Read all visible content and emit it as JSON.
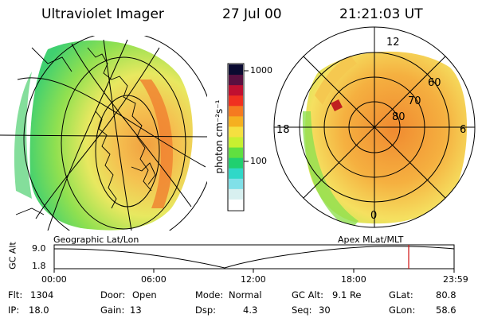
{
  "header": {
    "instrument": "Ultraviolet Imager",
    "date": "27 Jul 00",
    "time": "21:21:03 UT"
  },
  "colorbar": {
    "unit_label": "photon cm⁻²s⁻¹",
    "ticks": [
      "1000",
      "100"
    ],
    "colors": [
      "#0a0a30",
      "#5a1040",
      "#c01030",
      "#f03020",
      "#f57a20",
      "#f5b020",
      "#f5e040",
      "#c8f030",
      "#60e040",
      "#20d070",
      "#30d8c8",
      "#80e0e8",
      "#d8f0f0",
      "#ffffff"
    ]
  },
  "left_panel": {
    "label": "Geographic Lat/Lon"
  },
  "right_panel": {
    "label": "Apex MLat/MLT",
    "mlt_labels": [
      "12",
      "18",
      "6",
      "0"
    ],
    "mlat_labels": [
      "60",
      "70",
      "80"
    ]
  },
  "altitude_plot": {
    "ylabel": "GC Alt",
    "yticks": [
      "9.0",
      "1.8"
    ],
    "xticks": [
      "00:00",
      "06:00",
      "12:00",
      "18:00",
      "23:59"
    ]
  },
  "info": {
    "flt_label": "Flt:",
    "flt_value": "1304",
    "ip_label": "IP:",
    "ip_value": "18.0",
    "door_label": "Door:",
    "door_value": "Open",
    "gain_label": "Gain:",
    "gain_value": "13",
    "mode_label": "Mode:",
    "mode_value": "Normal",
    "dsp_label": "Dsp:",
    "dsp_value": "4.3",
    "gcalt_label": "GC Alt:",
    "gcalt_value": "9.1 Re",
    "seq_label": "Seq:",
    "seq_value": "30",
    "glat_label": "GLat:",
    "glat_value": "80.8",
    "glon_label": "GLon:",
    "glon_value": "58.6"
  }
}
